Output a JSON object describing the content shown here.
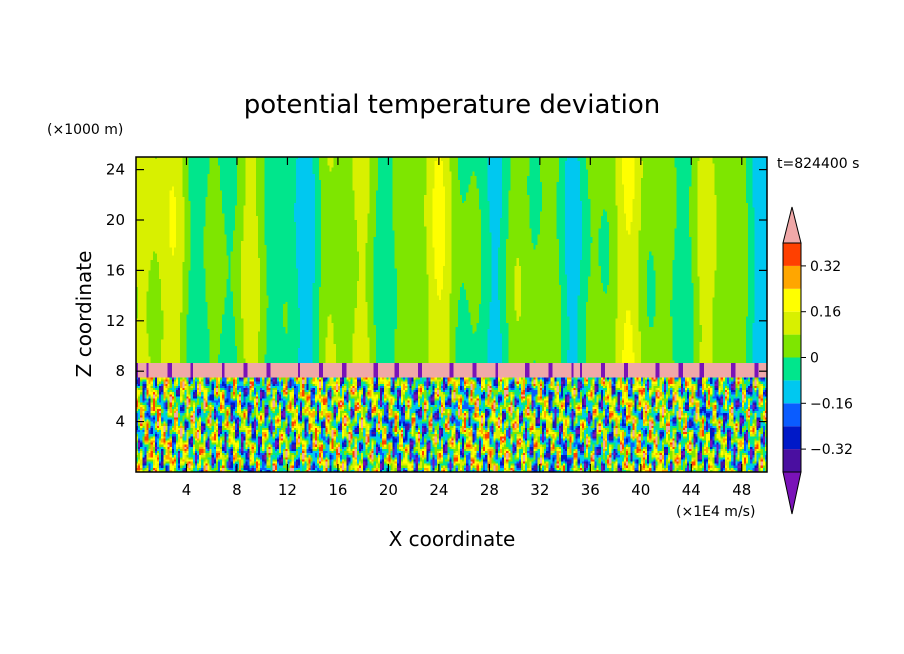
{
  "chart_data": {
    "type": "heatmap",
    "title": "potential temperature deviation",
    "xlabel": "X coordinate",
    "ylabel": "Z coordinate",
    "x_units": "(×1E4 m/s)",
    "y_units": "(×1000 m)",
    "time_label": "t=824400 s",
    "xlim": [
      0,
      50
    ],
    "ylim": [
      0,
      25
    ],
    "x_ticks": [
      4,
      8,
      12,
      16,
      20,
      24,
      28,
      32,
      36,
      40,
      44,
      48
    ],
    "y_ticks": [
      4,
      8,
      12,
      16,
      20,
      24
    ],
    "colorbar": {
      "levels": [
        -0.4,
        -0.32,
        -0.24,
        -0.16,
        -0.08,
        0,
        0.08,
        0.16,
        0.24,
        0.32,
        0.4
      ],
      "labels": [
        "0.32",
        "0.16",
        "0",
        "−0.16",
        "−0.32"
      ],
      "label_values": [
        0.32,
        0.16,
        0,
        -0.16,
        -0.32
      ],
      "colors": [
        "#7a12b8",
        "#4a0fa0",
        "#0019c8",
        "#0a5cff",
        "#00c8f0",
        "#00e68c",
        "#7ee600",
        "#d8f000",
        "#ffff00",
        "#ffa600",
        "#ff4000",
        "#f0a8a8"
      ],
      "extend": "both"
    },
    "regions": {
      "upper_layer": "Z 8.7–25: smooth vertical bands mostly between -0.16 and 0.24",
      "inversion_band": "Z ~7.5–8.7: thin pink band (>0.4) with purple (<-0.4) blobs",
      "lower_layer": "Z 0–7.5: turbulent fine-scale structure spanning -0.4 to 0.4"
    },
    "grid": false
  }
}
